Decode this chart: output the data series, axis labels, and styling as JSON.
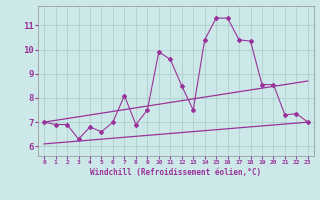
{
  "x": [
    0,
    1,
    2,
    3,
    4,
    5,
    6,
    7,
    8,
    9,
    10,
    11,
    12,
    13,
    14,
    15,
    16,
    17,
    18,
    19,
    20,
    21,
    22,
    23
  ],
  "y_main": [
    7.0,
    6.9,
    6.9,
    6.3,
    6.8,
    6.6,
    7.0,
    8.1,
    6.9,
    7.5,
    9.9,
    9.6,
    8.5,
    7.5,
    10.4,
    11.3,
    11.3,
    10.4,
    10.35,
    8.55,
    8.55,
    7.3,
    7.35,
    7.0
  ],
  "trend1_x": [
    0,
    23
  ],
  "trend1_y": [
    7.0,
    8.7
  ],
  "trend2_x": [
    0,
    23
  ],
  "trend2_y": [
    6.1,
    7.0
  ],
  "color": "#993399",
  "bg_color": "#cce8e8",
  "grid_color": "#aacccc",
  "xlabel": "Windchill (Refroidissement éolien,°C)",
  "ylabel_ticks": [
    6,
    7,
    8,
    9,
    10,
    11
  ],
  "xlim": [
    -0.5,
    23.5
  ],
  "ylim": [
    5.6,
    11.8
  ],
  "xticks": [
    0,
    1,
    2,
    3,
    4,
    5,
    6,
    7,
    8,
    9,
    10,
    11,
    12,
    13,
    14,
    15,
    16,
    17,
    18,
    19,
    20,
    21,
    22,
    23
  ]
}
